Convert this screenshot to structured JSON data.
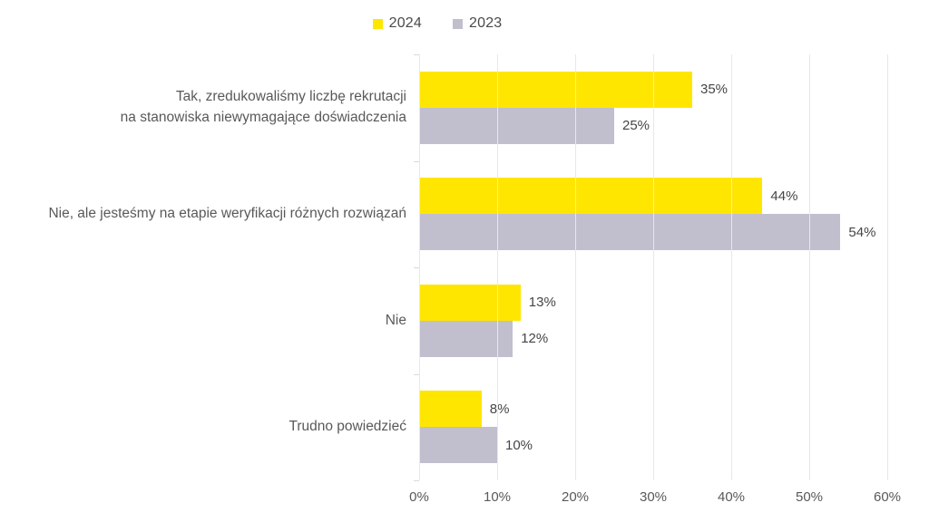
{
  "legend": {
    "items": [
      {
        "label": "2024",
        "color": "#FFE600"
      },
      {
        "label": "2023",
        "color": "#C1BFCE"
      }
    ]
  },
  "chart_data": {
    "type": "bar",
    "orientation": "horizontal",
    "title": "",
    "categories": [
      "Tak, zredukowaliśmy liczbę rekrutacji\nna stanowiska niewymagające doświadczenia",
      "Nie, ale jesteśmy na etapie weryfikacji różnych rozwiązań",
      "Nie",
      "Trudno powiedzieć"
    ],
    "series": [
      {
        "name": "2024",
        "color": "#FFE600",
        "values": [
          35,
          44,
          13,
          8
        ],
        "labels": [
          "35%",
          "44%",
          "13%",
          "8%"
        ]
      },
      {
        "name": "2023",
        "color": "#C1BFCE",
        "values": [
          25,
          54,
          12,
          10
        ],
        "labels": [
          "25%",
          "54%",
          "12%",
          "10%"
        ]
      }
    ],
    "x_ticks": [
      "0%",
      "10%",
      "20%",
      "30%",
      "40%",
      "50%",
      "60%"
    ],
    "xlim": [
      0,
      60
    ],
    "grid": true,
    "legend_position": "top-center"
  },
  "colors": {
    "background": "#FFFFFF",
    "gridline": "#E8E7EA",
    "category_tick": "#DBDADE",
    "axis_text": "#595959",
    "value_text": "#454545",
    "category_text": "#595959"
  }
}
